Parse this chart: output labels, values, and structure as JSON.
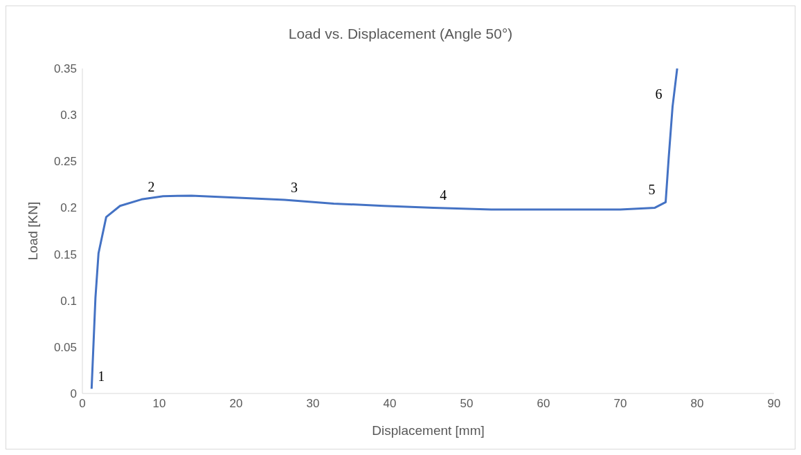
{
  "chart_data": {
    "type": "line",
    "title": "Load vs. Displacement (Angle 50°)",
    "xlabel": "Displacement  [mm]",
    "ylabel": "Load [KN]",
    "x": [
      1.2,
      1.7,
      2.1,
      3.1,
      4.9,
      7.7,
      10.5,
      14.2,
      19.8,
      26.3,
      32.7,
      39.2,
      45.7,
      53.2,
      60.6,
      70,
      74.5,
      75.9,
      76.3,
      76.8,
      77.4
    ],
    "series": [
      {
        "color": "#4472c4",
        "values": [
          0.005,
          0.103,
          0.151,
          0.19,
          0.202,
          0.209,
          0.2125,
          0.213,
          0.211,
          0.2085,
          0.2045,
          0.202,
          0.2,
          0.198,
          0.198,
          0.198,
          0.2,
          0.206,
          0.254,
          0.309,
          0.35
        ]
      }
    ],
    "xlim": [
      0,
      90
    ],
    "xticks": [
      0,
      10,
      20,
      30,
      40,
      50,
      60,
      70,
      80,
      90
    ],
    "ylim": [
      0,
      0.35
    ],
    "yticks": [
      0,
      0.05,
      0.1,
      0.15,
      0.2,
      0.25,
      0.3,
      0.35
    ],
    "grid": false,
    "legend": false,
    "marker": "none",
    "line_style": "solid",
    "annotations": [
      {
        "text": "1",
        "x": 1.2,
        "y": 0.005
      },
      {
        "text": "2",
        "x": 7.7,
        "y": 0.209
      },
      {
        "text": "3",
        "x": 26.3,
        "y": 0.2085
      },
      {
        "text": "4",
        "x": 45.7,
        "y": 0.2
      },
      {
        "text": "5",
        "x": 75.9,
        "y": 0.206
      },
      {
        "text": "6",
        "x": 76.8,
        "y": 0.309
      }
    ]
  }
}
